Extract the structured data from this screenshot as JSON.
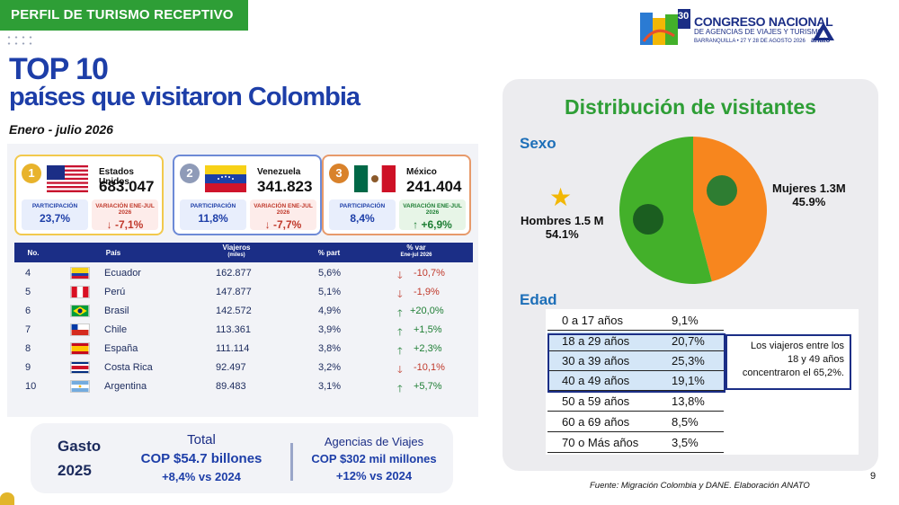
{
  "header": {
    "section_tag": "PERFIL DE TURISMO RECEPTIVO",
    "title_line1": "TOP 10",
    "title_line2": "países que visitaron Colombia",
    "period": "Enero - julio 2026"
  },
  "logo": {
    "badge_number": "30",
    "line1": "CONGRESO NACIONAL",
    "line2": "DE AGENCIAS DE VIAJES Y TURISMO",
    "line3": "BARRANQUILLA • 27 Y 28 DE AGOSTO 2026",
    "brand": "anato"
  },
  "top3": [
    {
      "rank": "1",
      "country": "Estados Unidos",
      "value": "683.047",
      "part_label": "PARTICIPACIÓN",
      "part": "23,7%",
      "var_label": "VARIACIÓN ENE-JUL 2026",
      "var": "↓ -7,1%",
      "trend": "down"
    },
    {
      "rank": "2",
      "country": "Venezuela",
      "value": "341.823",
      "part_label": "PARTICIPACIÓN",
      "part": "11,8%",
      "var_label": "VARIACIÓN ENE-JUL 2026",
      "var": "↓ -7,7%",
      "trend": "down"
    },
    {
      "rank": "3",
      "country": "México",
      "value": "241.404",
      "part_label": "PARTICIPACIÓN",
      "part": "8,4%",
      "var_label": "VARIACIÓN ENE-JUL 2026",
      "var": "↑ +6,9%",
      "trend": "up"
    }
  ],
  "table": {
    "headers": {
      "no": "No.",
      "pais": "País",
      "viajeros": "Viajeros",
      "viajeros_sub": "(miles)",
      "part": "% part",
      "var": "% var",
      "var_sub": "Ene-jul 2026"
    },
    "rows": [
      {
        "no": "4",
        "pais": "Ecuador",
        "viajeros": "162.877",
        "part": "5,6%",
        "var": "-10,7%",
        "trend": "down"
      },
      {
        "no": "5",
        "pais": "Perú",
        "viajeros": "147.877",
        "part": "5,1%",
        "var": "-1,9%",
        "trend": "down"
      },
      {
        "no": "6",
        "pais": "Brasil",
        "viajeros": "142.572",
        "part": "4,9%",
        "var": "+20,0%",
        "trend": "up"
      },
      {
        "no": "7",
        "pais": "Chile",
        "viajeros": "113.361",
        "part": "3,9%",
        "var": "+1,5%",
        "trend": "up"
      },
      {
        "no": "8",
        "pais": "España",
        "viajeros": "111.114",
        "part": "3,8%",
        "var": "+2,3%",
        "trend": "up"
      },
      {
        "no": "9",
        "pais": "Costa Rica",
        "viajeros": "92.497",
        "part": "3,2%",
        "var": "-10,1%",
        "trend": "down"
      },
      {
        "no": "10",
        "pais": "Argentina",
        "viajeros": "89.483",
        "part": "3,1%",
        "var": "+5,7%",
        "trend": "up"
      }
    ]
  },
  "gasto": {
    "label1": "Gasto",
    "label2": "2025",
    "total_title": "Total",
    "total_value": "COP $54.7 billones",
    "total_var": "+8,4% vs 2024",
    "agencias_title": "Agencias de Viajes",
    "agencias_value": "COP $302 mil millones",
    "agencias_var": "+12% vs 2024"
  },
  "distribution": {
    "title": "Distribución de visitantes",
    "sexo_label": "Sexo",
    "edad_label": "Edad",
    "colors": {
      "mujeres": "#f7861e",
      "hombres": "#43b02a"
    },
    "mujeres_label": "Mujeres 1.3M",
    "mujeres_pct": "45.9%",
    "mujeres_share": 0.459,
    "hombres_label": "Hombres 1.5 M",
    "hombres_pct": "54.1%",
    "hombres_share": 0.541,
    "ages": [
      {
        "range": "0 a 17  años",
        "pct": "9,1%"
      },
      {
        "range": "18 a 29  años",
        "pct": "20,7%"
      },
      {
        "range": "30 a 39  años",
        "pct": "25,3%"
      },
      {
        "range": "40 a 49  años",
        "pct": "19,1%"
      },
      {
        "range": "50 a 59  años",
        "pct": "13,8%"
      },
      {
        "range": "60 a 69  años",
        "pct": "8,5%"
      },
      {
        "range": "70 o Más  años",
        "pct": "3,5%"
      }
    ],
    "note_line1": "Los viajeros entre los",
    "note_line2": "18 y 49 años",
    "note_line3": "concentraron el 65,2%."
  },
  "footer": {
    "source": "Fuente: Migración Colombia y DANE. Elaboración ANATO",
    "page": "9"
  }
}
